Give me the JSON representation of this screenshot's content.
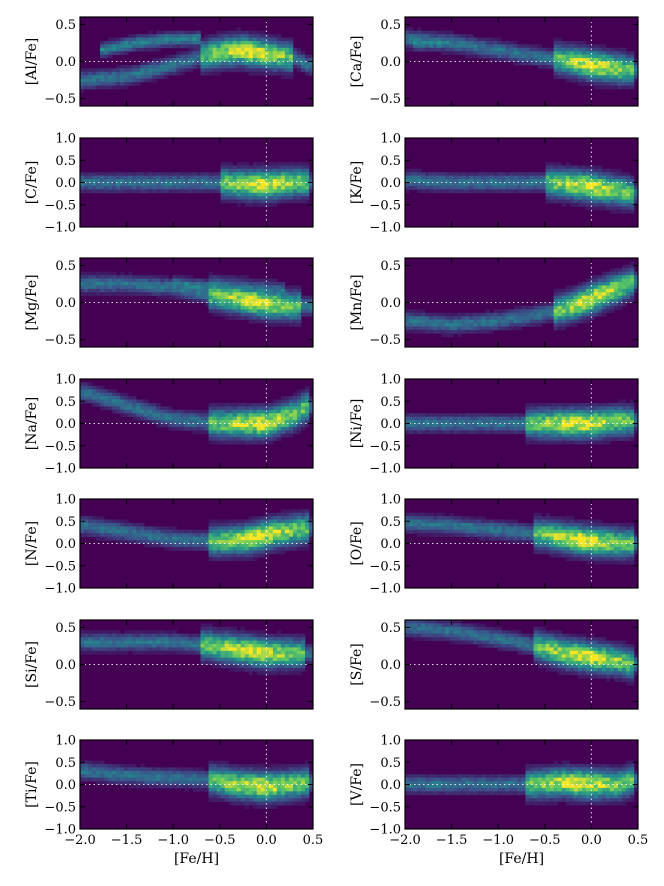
{
  "figure": {
    "x_ticks": [
      "-2.0",
      "-1.5",
      "-1.0",
      "-0.5",
      "0.0",
      "0.5"
    ],
    "x_label": "[Fe/H]",
    "colormap": [
      "#440154",
      "#3b528b",
      "#21908d",
      "#5dc962",
      "#fde725"
    ],
    "background_color": "#440154",
    "reference_line_color": "#ffffff"
  },
  "chart_data": [
    {
      "type": "heatmap",
      "ylabel": "[Al/Fe]",
      "xlim": [
        -2.0,
        0.5
      ],
      "ylim": [
        -0.6,
        0.6
      ],
      "yticks": [
        "0.5",
        "0.0",
        "-0.5"
      ],
      "grid": false,
      "trend": {
        "x": [
          -1.95,
          -1.5,
          -1.0,
          -0.6,
          -0.3,
          0.0,
          0.3,
          0.45
        ],
        "y": [
          -0.25,
          -0.2,
          -0.05,
          0.1,
          0.15,
          0.1,
          0.05,
          -0.05
        ]
      },
      "secondary": {
        "x": [
          -1.8,
          -1.4,
          -1.0,
          -0.7
        ],
        "y": [
          0.15,
          0.25,
          0.3,
          0.3
        ]
      },
      "peak_x": [
        -0.7,
        0.3
      ]
    },
    {
      "type": "heatmap",
      "ylabel": "[Ca/Fe]",
      "xlim": [
        -2.0,
        0.5
      ],
      "ylim": [
        -0.6,
        0.6
      ],
      "yticks": [
        "0.5",
        "0.0",
        "-0.5"
      ],
      "grid": false,
      "trend": {
        "x": [
          -1.95,
          -1.5,
          -1.0,
          -0.5,
          -0.2,
          0.0,
          0.3,
          0.45
        ],
        "y": [
          0.3,
          0.25,
          0.15,
          0.05,
          0.0,
          -0.05,
          -0.1,
          -0.12
        ]
      },
      "secondary": {
        "x": [
          -1.9,
          -1.5
        ],
        "y": [
          0.25,
          0.25
        ]
      },
      "peak_x": [
        -0.4,
        0.45
      ]
    },
    {
      "type": "heatmap",
      "ylabel": "[C/Fe]",
      "xlim": [
        -2.0,
        0.5
      ],
      "ylim": [
        -1.0,
        1.0
      ],
      "yticks": [
        "1.0",
        "0.5",
        "0.0",
        "-0.5",
        "-1.0"
      ],
      "grid": false,
      "trend": {
        "x": [
          -1.95,
          -1.5,
          -1.0,
          -0.5,
          -0.2,
          0.0,
          0.3,
          0.45
        ],
        "y": [
          0.0,
          0.0,
          0.0,
          0.0,
          -0.05,
          -0.05,
          0.0,
          0.0
        ]
      },
      "secondary": null,
      "peak_x": [
        -0.5,
        0.45
      ]
    },
    {
      "type": "heatmap",
      "ylabel": "[K/Fe]",
      "xlim": [
        -2.0,
        0.5
      ],
      "ylim": [
        -1.0,
        1.0
      ],
      "yticks": [
        "1.0",
        "0.5",
        "0.0",
        "-0.5",
        "-1.0"
      ],
      "grid": false,
      "trend": {
        "x": [
          -1.95,
          -1.5,
          -1.0,
          -0.5,
          -0.2,
          0.0,
          0.3,
          0.45
        ],
        "y": [
          0.05,
          0.0,
          0.0,
          0.0,
          -0.05,
          -0.1,
          -0.2,
          -0.25
        ]
      },
      "secondary": null,
      "peak_x": [
        -0.5,
        0.45
      ]
    },
    {
      "type": "heatmap",
      "ylabel": "[Mg/Fe]",
      "xlim": [
        -2.0,
        0.5
      ],
      "ylim": [
        -0.6,
        0.6
      ],
      "yticks": [
        "0.5",
        "0.0",
        "-0.5"
      ],
      "grid": false,
      "trend": {
        "x": [
          -1.95,
          -1.5,
          -1.0,
          -0.6,
          -0.3,
          0.0,
          0.3,
          0.45
        ],
        "y": [
          0.25,
          0.25,
          0.2,
          0.1,
          0.05,
          -0.02,
          -0.05,
          -0.05
        ]
      },
      "secondary": {
        "x": [
          -1.0,
          -0.6,
          -0.2,
          0.2
        ],
        "y": [
          0.25,
          0.2,
          0.15,
          0.1
        ]
      },
      "peak_x": [
        -0.6,
        0.35
      ]
    },
    {
      "type": "heatmap",
      "ylabel": "[Mn/Fe]",
      "xlim": [
        -2.0,
        0.5
      ],
      "ylim": [
        -0.6,
        0.6
      ],
      "yticks": [
        "0.5",
        "0.0",
        "-0.5"
      ],
      "grid": false,
      "trend": {
        "x": [
          -1.95,
          -1.5,
          -1.0,
          -0.5,
          -0.2,
          0.0,
          0.3,
          0.45
        ],
        "y": [
          -0.25,
          -0.3,
          -0.25,
          -0.15,
          -0.05,
          0.05,
          0.2,
          0.28
        ]
      },
      "secondary": null,
      "peak_x": [
        -0.4,
        0.45
      ]
    },
    {
      "type": "heatmap",
      "ylabel": "[Na/Fe]",
      "xlim": [
        -2.0,
        0.5
      ],
      "ylim": [
        -1.0,
        1.0
      ],
      "yticks": [
        "1.0",
        "0.5",
        "0.0",
        "-0.5",
        "-1.0"
      ],
      "grid": false,
      "trend": {
        "x": [
          -1.95,
          -1.5,
          -1.0,
          -0.5,
          -0.2,
          0.0,
          0.3,
          0.45
        ],
        "y": [
          0.7,
          0.4,
          0.1,
          0.0,
          0.0,
          0.0,
          0.2,
          0.4
        ]
      },
      "secondary": null,
      "peak_x": [
        -0.6,
        0.45
      ]
    },
    {
      "type": "heatmap",
      "ylabel": "[Ni/Fe]",
      "xlim": [
        -2.0,
        0.5
      ],
      "ylim": [
        -1.0,
        1.0
      ],
      "yticks": [
        "1.0",
        "0.5",
        "0.0",
        "-0.5",
        "-1.0"
      ],
      "grid": false,
      "trend": {
        "x": [
          -1.95,
          -1.5,
          -1.0,
          -0.5,
          -0.2,
          0.0,
          0.3,
          0.45
        ],
        "y": [
          0.0,
          0.0,
          0.0,
          0.0,
          0.0,
          0.0,
          0.05,
          0.05
        ]
      },
      "secondary": null,
      "peak_x": [
        -0.7,
        0.45
      ]
    },
    {
      "type": "heatmap",
      "ylabel": "[N/Fe]",
      "xlim": [
        -2.0,
        0.5
      ],
      "ylim": [
        -1.0,
        1.0
      ],
      "yticks": [
        "1.0",
        "0.5",
        "0.0",
        "-0.5",
        "-1.0"
      ],
      "grid": false,
      "trend": {
        "x": [
          -1.95,
          -1.5,
          -1.0,
          -0.5,
          -0.2,
          0.0,
          0.3,
          0.45
        ],
        "y": [
          0.4,
          0.25,
          0.1,
          0.05,
          0.1,
          0.2,
          0.3,
          0.35
        ]
      },
      "secondary": null,
      "peak_x": [
        -0.6,
        0.45
      ]
    },
    {
      "type": "heatmap",
      "ylabel": "[O/Fe]",
      "xlim": [
        -2.0,
        0.5
      ],
      "ylim": [
        -1.0,
        1.0
      ],
      "yticks": [
        "1.0",
        "0.5",
        "0.0",
        "-0.5",
        "-1.0"
      ],
      "grid": false,
      "trend": {
        "x": [
          -1.95,
          -1.5,
          -1.0,
          -0.5,
          -0.2,
          0.0,
          0.3,
          0.45
        ],
        "y": [
          0.45,
          0.4,
          0.3,
          0.2,
          0.1,
          0.05,
          0.0,
          0.0
        ]
      },
      "secondary": null,
      "peak_x": [
        -0.6,
        0.45
      ]
    },
    {
      "type": "heatmap",
      "ylabel": "[Si/Fe]",
      "xlim": [
        -2.0,
        0.5
      ],
      "ylim": [
        -0.6,
        0.6
      ],
      "yticks": [
        "0.5",
        "0.0",
        "-0.5"
      ],
      "grid": false,
      "trend": {
        "x": [
          -1.95,
          -1.5,
          -1.0,
          -0.6,
          -0.3,
          0.0,
          0.3,
          0.45
        ],
        "y": [
          0.3,
          0.3,
          0.3,
          0.25,
          0.2,
          0.15,
          0.15,
          0.15
        ]
      },
      "secondary": null,
      "peak_x": [
        -0.7,
        0.4
      ]
    },
    {
      "type": "heatmap",
      "ylabel": "[S/Fe]",
      "xlim": [
        -2.0,
        0.5
      ],
      "ylim": [
        -0.6,
        0.6
      ],
      "yticks": [
        "0.5",
        "0.0",
        "-0.5"
      ],
      "grid": false,
      "trend": {
        "x": [
          -1.95,
          -1.5,
          -1.0,
          -0.6,
          -0.3,
          0.0,
          0.3,
          0.45
        ],
        "y": [
          0.5,
          0.45,
          0.35,
          0.25,
          0.15,
          0.1,
          0.05,
          0.0
        ]
      },
      "secondary": null,
      "peak_x": [
        -0.6,
        0.45
      ]
    },
    {
      "type": "heatmap",
      "ylabel": "[Ti/Fe]",
      "xlim": [
        -2.0,
        0.5
      ],
      "ylim": [
        -1.0,
        1.0
      ],
      "yticks": [
        "1.0",
        "0.5",
        "0.0",
        "-0.5",
        "-1.0"
      ],
      "grid": false,
      "trend": {
        "x": [
          -1.95,
          -1.5,
          -1.0,
          -0.6,
          -0.3,
          0.0,
          0.3,
          0.45
        ],
        "y": [
          0.3,
          0.2,
          0.15,
          0.1,
          0.0,
          -0.05,
          0.0,
          0.05
        ]
      },
      "secondary": null,
      "peak_x": [
        -0.6,
        0.45
      ]
    },
    {
      "type": "heatmap",
      "ylabel": "[V/Fe]",
      "xlim": [
        -2.0,
        0.5
      ],
      "ylim": [
        -1.0,
        1.0
      ],
      "yticks": [
        "1.0",
        "0.5",
        "0.0",
        "-0.5",
        "-1.0"
      ],
      "grid": false,
      "trend": {
        "x": [
          -1.95,
          -1.5,
          -1.0,
          -0.6,
          -0.3,
          0.0,
          0.3,
          0.45
        ],
        "y": [
          0.0,
          0.0,
          0.0,
          0.0,
          0.05,
          0.0,
          0.0,
          0.1
        ]
      },
      "secondary": null,
      "peak_x": [
        -0.7,
        0.45
      ]
    }
  ]
}
